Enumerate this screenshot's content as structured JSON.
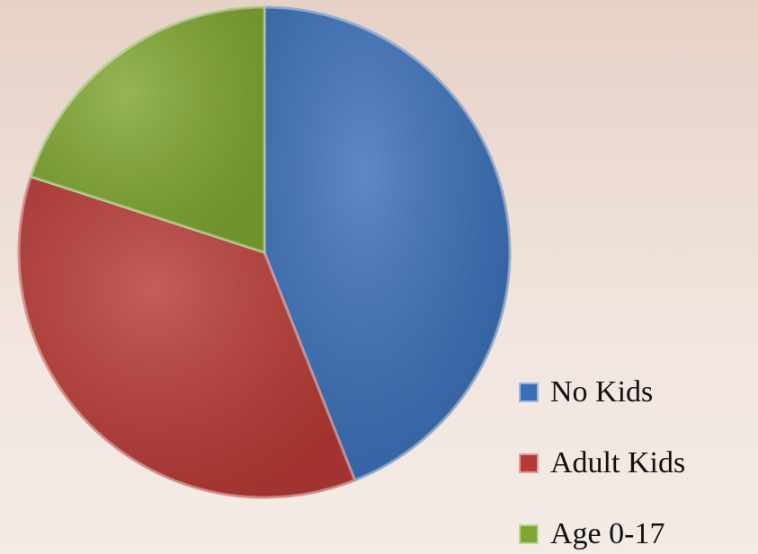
{
  "chart_data": {
    "type": "pie",
    "categories": [
      "No Kids",
      "Adult Kids",
      "Age 0-17"
    ],
    "values": [
      44,
      36,
      20
    ],
    "colors": [
      "#3a6fb8",
      "#b83a36",
      "#7fa631"
    ],
    "legend": "right"
  }
}
